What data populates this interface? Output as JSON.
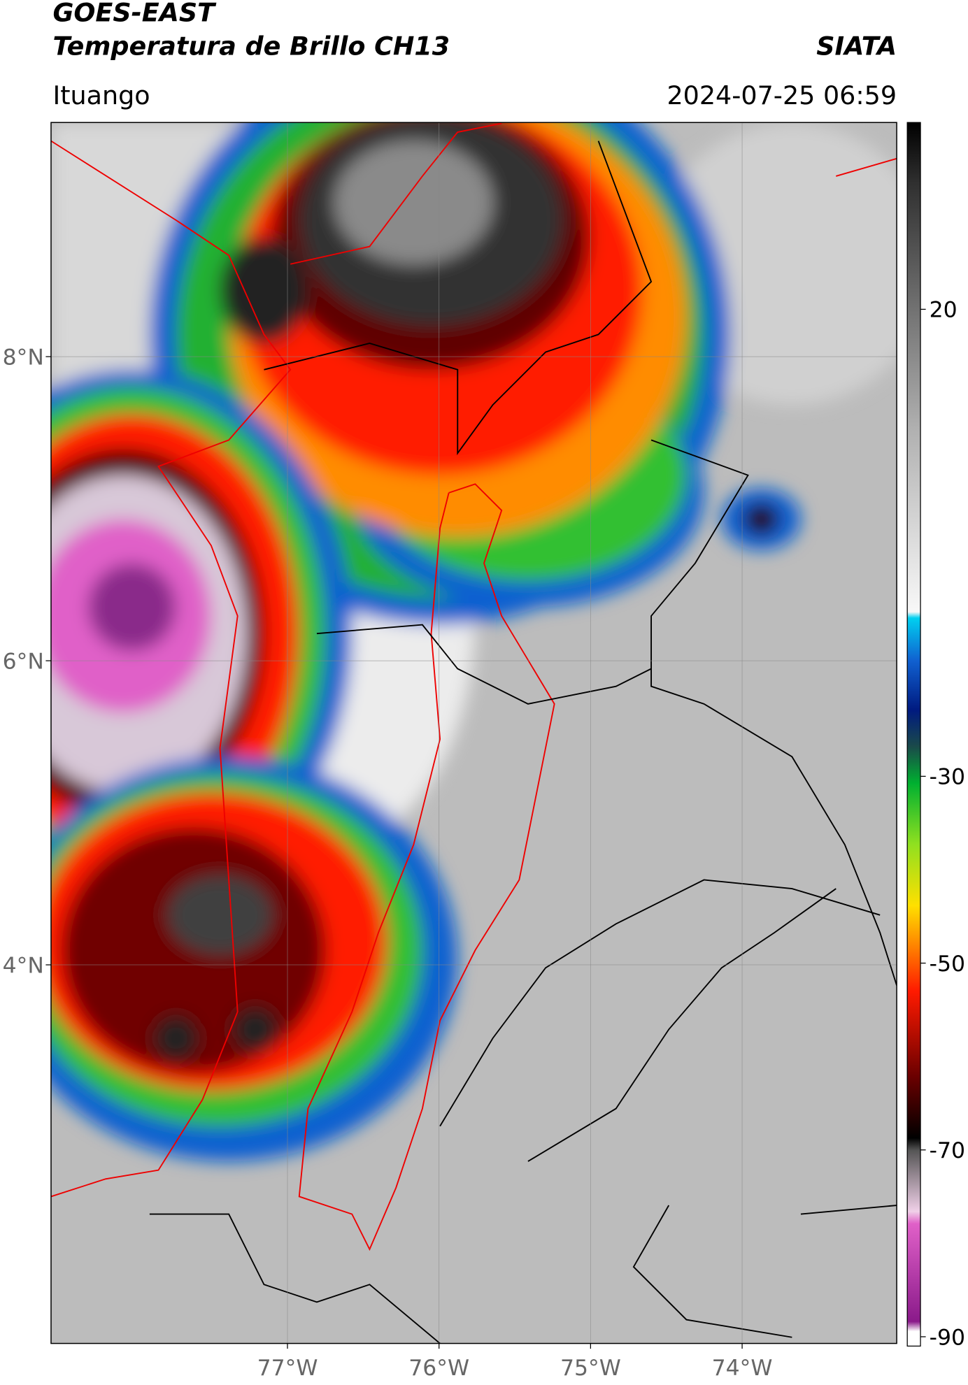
{
  "header": {
    "title": "GOES-EAST",
    "subtitle": "Temperatura de Brillo CH13",
    "source": "SIATA",
    "location": "Ituango",
    "datetime": "2024-07-25 06:59"
  },
  "map": {
    "xlim": [
      -78.56,
      -72.98
    ],
    "ylim": [
      1.51,
      9.54
    ],
    "xticks": [
      {
        "value": -77,
        "label": "77°W"
      },
      {
        "value": -76,
        "label": "76°W"
      },
      {
        "value": -75,
        "label": "75°W"
      },
      {
        "value": -74,
        "label": "74°W"
      }
    ],
    "yticks": [
      {
        "value": 8,
        "label": "8°N"
      },
      {
        "value": 6,
        "label": "6°N"
      },
      {
        "value": 4,
        "label": "4°N"
      }
    ],
    "grid": true
  },
  "colorbar": {
    "lim": [
      -91,
      40
    ],
    "ticks": [
      20,
      -30,
      -50,
      -70,
      -90
    ]
  }
}
